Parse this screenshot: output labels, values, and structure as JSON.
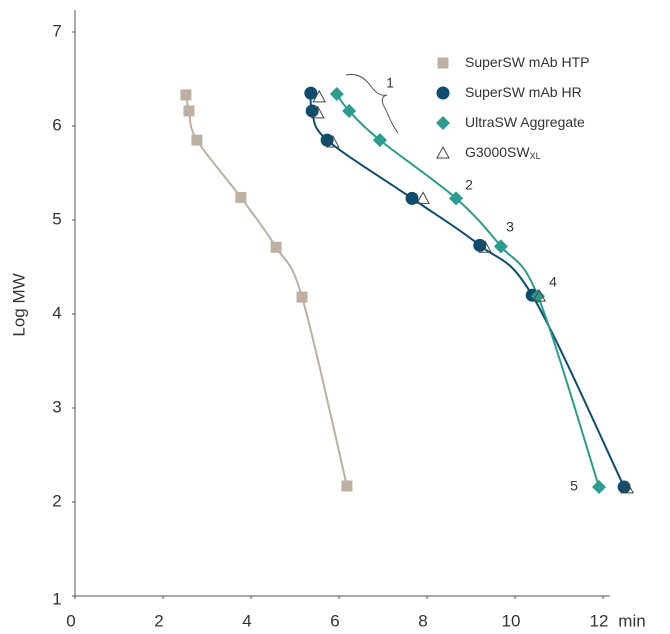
{
  "chart_data": {
    "type": "scatter",
    "x_label": "min",
    "y_label": "Log MW",
    "xlim": [
      0,
      12
    ],
    "ylim": [
      1,
      7
    ],
    "xticks": [
      0,
      2,
      4,
      6,
      8,
      10,
      12
    ],
    "yticks": [
      1,
      2,
      3,
      4,
      5,
      6,
      7
    ],
    "legend": "top-right",
    "series": [
      {
        "name": "SuperSW mAb HTP",
        "color": "#bcb0a2",
        "marker": "square",
        "line": true,
        "x": [
          2.52,
          2.59,
          2.77,
          3.77,
          4.57,
          5.16,
          6.18
        ],
        "values": [
          6.33,
          6.16,
          5.85,
          5.24,
          4.71,
          4.18,
          2.17
        ]
      },
      {
        "name": "SuperSW mAb HR",
        "color": "#0e4d6e",
        "marker": "circle",
        "line": true,
        "x": [
          5.36,
          5.39,
          5.73,
          7.66,
          9.2,
          10.39,
          12.48
        ],
        "values": [
          6.35,
          6.16,
          5.85,
          5.23,
          4.73,
          4.2,
          2.16
        ]
      },
      {
        "name": "UltraSW Aggregate",
        "color": "#2a9d8f",
        "marker": "diamond",
        "line": true,
        "x": [
          5.95,
          6.23,
          6.93,
          8.66,
          9.68,
          10.52,
          11.91
        ],
        "values": [
          6.34,
          6.16,
          5.85,
          5.23,
          4.72,
          4.19,
          2.16
        ]
      },
      {
        "name": "G3000SW",
        "subscript": "XL",
        "color": "#444444",
        "marker": "triangle-open",
        "line": false,
        "x": [
          5.55,
          5.52,
          5.86,
          7.91,
          9.32,
          10.55,
          12.55
        ],
        "values": [
          6.31,
          6.14,
          5.83,
          5.23,
          4.71,
          4.19,
          2.15
        ]
      }
    ],
    "annotations": [
      "1",
      "2",
      "3",
      "4",
      "5"
    ]
  }
}
